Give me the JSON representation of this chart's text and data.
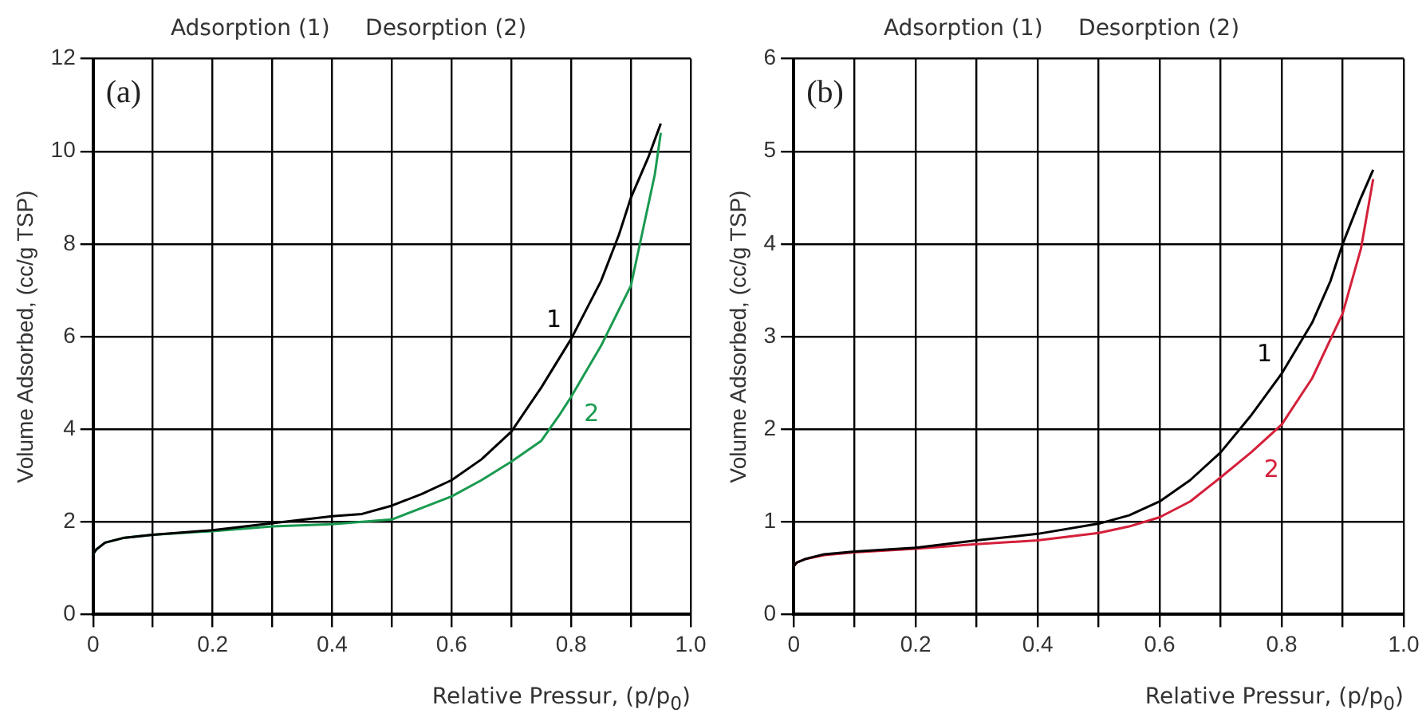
{
  "chart_data": [
    {
      "type": "line",
      "title": "Adsorption (1)     Desorption (2)",
      "xlabel": "Relative Pressur, (p/p$_{0}$)",
      "ylabel": "Volume Adsorbed, (cc/g TSP)",
      "annotations": [
        "(a)"
      ],
      "series": [
        {
          "name": "1",
          "color": "#000000",
          "x": [
            0,
            0.005,
            0.02,
            0.05,
            0.1,
            0.2,
            0.3,
            0.4,
            0.45,
            0.5,
            0.55,
            0.6,
            0.65,
            0.7,
            0.75,
            0.8,
            0.85,
            0.88,
            0.9,
            0.93,
            0.95
          ],
          "values": [
            1.3,
            1.4,
            1.55,
            1.65,
            1.72,
            1.82,
            1.97,
            2.12,
            2.17,
            2.35,
            2.6,
            2.9,
            3.35,
            3.95,
            4.9,
            5.95,
            7.2,
            8.2,
            9.0,
            9.9,
            10.6
          ]
        },
        {
          "name": "2",
          "color": "#1a9a50",
          "x": [
            0,
            0.005,
            0.02,
            0.05,
            0.1,
            0.2,
            0.3,
            0.4,
            0.5,
            0.55,
            0.6,
            0.65,
            0.7,
            0.75,
            0.78,
            0.8,
            0.85,
            0.9,
            0.92,
            0.94,
            0.95
          ],
          "values": [
            1.3,
            1.4,
            1.55,
            1.65,
            1.72,
            1.8,
            1.9,
            1.95,
            2.05,
            2.3,
            2.55,
            2.9,
            3.3,
            3.75,
            4.3,
            4.7,
            5.8,
            7.1,
            8.3,
            9.5,
            10.4
          ]
        }
      ],
      "xlim": [
        0,
        1
      ],
      "xticks": [
        0,
        {
          "value": 0.1,
          "label": null
        },
        0.2,
        {
          "value": 0.3,
          "label": null
        },
        0.4,
        {
          "value": 0.5,
          "label": null
        },
        0.6,
        {
          "value": 0.7,
          "label": null
        },
        0.8,
        {
          "value": 0.9,
          "label": null
        },
        {
          "value": 1,
          "label": "1.0"
        }
      ],
      "ylim": [
        0,
        12
      ],
      "yticks": [
        0,
        2,
        4,
        6,
        8,
        10,
        12
      ],
      "grid": true,
      "legend": false,
      "marker": "none",
      "line_style": "solid"
    },
    {
      "type": "line",
      "title": "Adsorption (1)     Desorption (2)",
      "xlabel": "Relative Pressur, (p/p$_{0}$)",
      "ylabel": "Volume Adsorbed, (cc/g TSP)",
      "annotations": [
        "(b)"
      ],
      "series": [
        {
          "name": "1",
          "color": "#000000",
          "x": [
            0,
            0.005,
            0.02,
            0.05,
            0.1,
            0.2,
            0.3,
            0.4,
            0.5,
            0.55,
            0.6,
            0.65,
            0.7,
            0.75,
            0.8,
            0.85,
            0.88,
            0.9,
            0.93,
            0.95
          ],
          "values": [
            0.52,
            0.56,
            0.6,
            0.65,
            0.68,
            0.72,
            0.8,
            0.87,
            0.98,
            1.07,
            1.22,
            1.45,
            1.75,
            2.15,
            2.6,
            3.15,
            3.6,
            4.0,
            4.5,
            4.8
          ]
        },
        {
          "name": "2",
          "color": "#d4203a",
          "x": [
            0,
            0.005,
            0.02,
            0.05,
            0.1,
            0.2,
            0.3,
            0.4,
            0.5,
            0.55,
            0.6,
            0.65,
            0.7,
            0.75,
            0.8,
            0.85,
            0.9,
            0.93,
            0.95
          ],
          "values": [
            0.52,
            0.56,
            0.6,
            0.64,
            0.67,
            0.71,
            0.76,
            0.8,
            0.88,
            0.95,
            1.05,
            1.22,
            1.48,
            1.75,
            2.05,
            2.55,
            3.25,
            3.95,
            4.7
          ]
        }
      ],
      "xlim": [
        0,
        1
      ],
      "xticks": [
        0,
        {
          "value": 0.1,
          "label": null
        },
        0.2,
        {
          "value": 0.3,
          "label": null
        },
        0.4,
        {
          "value": 0.5,
          "label": null
        },
        0.6,
        {
          "value": 0.7,
          "label": null
        },
        0.8,
        {
          "value": 0.9,
          "label": null
        },
        {
          "value": 1,
          "label": "1.0"
        }
      ],
      "ylim": [
        0,
        6
      ],
      "yticks": [
        0,
        1,
        2,
        3,
        4,
        5,
        6
      ],
      "grid": true,
      "legend": false,
      "marker": "none",
      "line_style": "solid"
    }
  ]
}
